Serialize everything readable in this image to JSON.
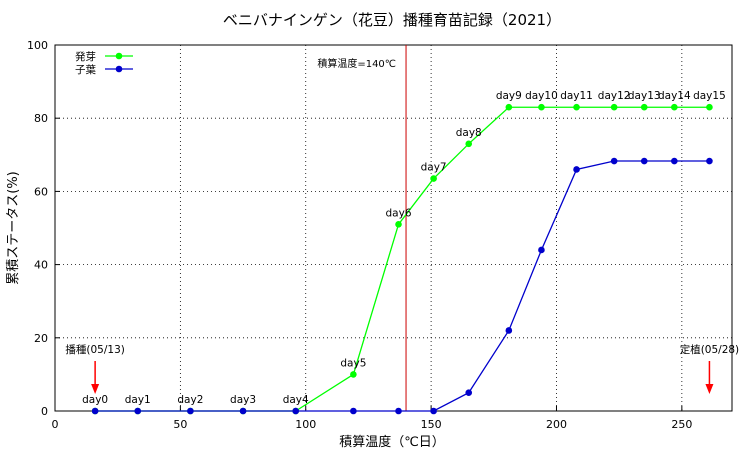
{
  "chart_data": {
    "type": "line",
    "title": "ベニバナインゲン（花豆）播種育苗記録（2021）",
    "xlabel": "積算温度（℃日）",
    "ylabel": "累積ステータス(%)",
    "xlim": [
      0,
      270
    ],
    "ylim": [
      0,
      100
    ],
    "xticks": [
      0,
      50,
      100,
      150,
      200,
      250
    ],
    "yticks": [
      0,
      20,
      40,
      60,
      80,
      100
    ],
    "grid": true,
    "legend_position": "top-left",
    "series": [
      {
        "name": "発芽",
        "color": "#00ff00",
        "x": [
          16,
          33,
          54,
          75,
          96,
          119,
          137,
          151,
          165,
          181,
          194,
          208,
          223,
          235,
          247,
          261
        ],
        "y": [
          0,
          0,
          0,
          0,
          0,
          10,
          51,
          63.5,
          73,
          83,
          83,
          83,
          83,
          83,
          83,
          83
        ]
      },
      {
        "name": "子葉",
        "color": "#0000cc",
        "x": [
          16,
          33,
          54,
          75,
          96,
          119,
          137,
          151,
          165,
          181,
          194,
          208,
          223,
          235,
          247,
          261
        ],
        "y": [
          0,
          0,
          0,
          0,
          0,
          0,
          0,
          0,
          5,
          22,
          44,
          66,
          68.3,
          68.3,
          68.3,
          68.3
        ]
      }
    ],
    "day_labels": [
      {
        "text": "day0",
        "x": 16,
        "y": 0
      },
      {
        "text": "day1",
        "x": 33,
        "y": 0
      },
      {
        "text": "day2",
        "x": 54,
        "y": 0
      },
      {
        "text": "day3",
        "x": 75,
        "y": 0
      },
      {
        "text": "day4",
        "x": 96,
        "y": 0
      },
      {
        "text": "day5",
        "x": 119,
        "y": 10
      },
      {
        "text": "day6",
        "x": 137,
        "y": 51
      },
      {
        "text": "day7",
        "x": 151,
        "y": 63.5
      },
      {
        "text": "day8",
        "x": 165,
        "y": 73
      },
      {
        "text": "day9",
        "x": 181,
        "y": 83
      },
      {
        "text": "day10",
        "x": 194,
        "y": 83
      },
      {
        "text": "day11",
        "x": 208,
        "y": 83
      },
      {
        "text": "day12",
        "x": 223,
        "y": 83
      },
      {
        "text": "day13",
        "x": 235,
        "y": 83
      },
      {
        "text": "day14",
        "x": 247,
        "y": 83
      },
      {
        "text": "day15",
        "x": 261,
        "y": 83
      }
    ],
    "reference_line": {
      "x": 140,
      "color": "#cc0000",
      "label": "積算温度=140℃"
    },
    "arrow_annotations": [
      {
        "text": "播種(05/13)",
        "x": 16,
        "color": "#ff0000"
      },
      {
        "text": "定植(05/28)",
        "x": 261,
        "color": "#ff0000"
      }
    ]
  }
}
